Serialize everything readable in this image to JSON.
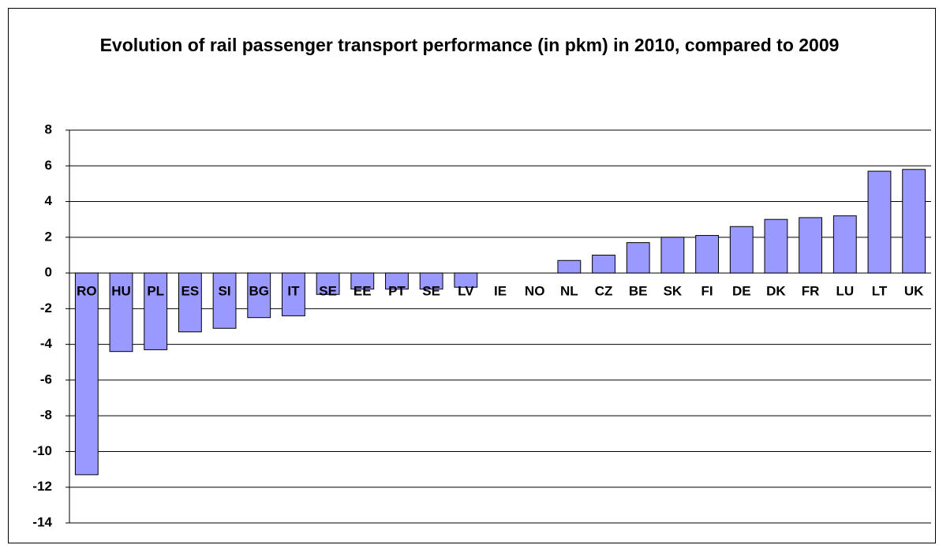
{
  "chart_data": {
    "type": "bar",
    "title": "Evolution of rail passenger transport performance (in pkm) in 2010, compared to 2009",
    "categories": [
      "RO",
      "HU",
      "PL",
      "ES",
      "SI",
      "BG",
      "IT",
      "SE",
      "EE",
      "PT",
      "SE",
      "LV",
      "IE",
      "NO",
      "NL",
      "CZ",
      "BE",
      "SK",
      "FI",
      "DE",
      "DK",
      "FR",
      "LU",
      "LT",
      "UK"
    ],
    "values": [
      -11.3,
      -4.4,
      -4.3,
      -3.3,
      -3.1,
      -2.5,
      -2.4,
      -1.2,
      -0.9,
      -0.9,
      -0.9,
      -0.8,
      0,
      0,
      0.7,
      1.0,
      1.7,
      2.0,
      2.1,
      2.6,
      3.0,
      3.1,
      3.2,
      5.7,
      5.8
    ],
    "color": "#9999ff",
    "ylim": [
      -14,
      8
    ],
    "yticks": [
      -14,
      -12,
      -10,
      -8,
      -6,
      -4,
      -2,
      0,
      2,
      4,
      6,
      8
    ],
    "grid": true
  }
}
